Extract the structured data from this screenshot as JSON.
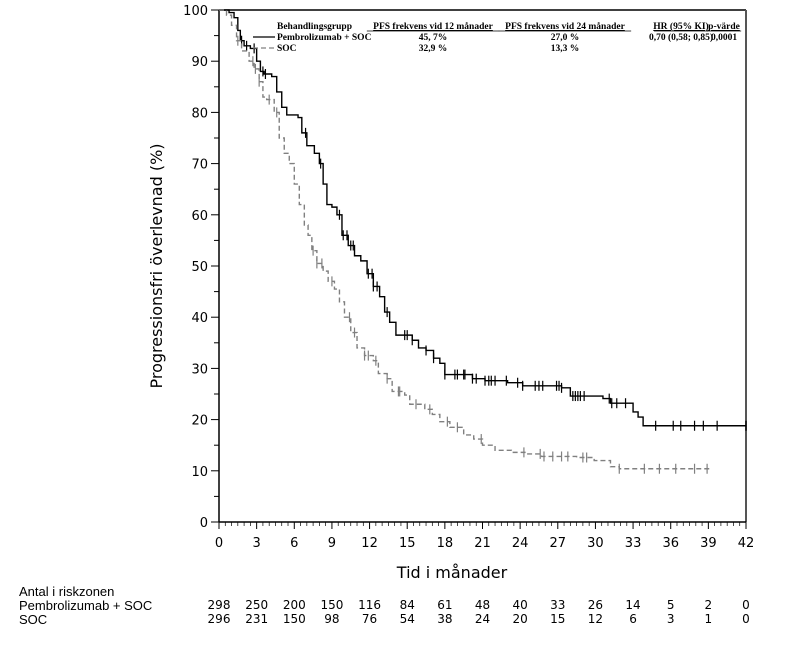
{
  "chart_data": {
    "type": "line",
    "subtype": "kaplan-meier",
    "title": "",
    "xlabel": "Tid i månader",
    "ylabel": "Progressionsfri överlevnad (%)",
    "xlim": [
      0,
      42
    ],
    "ylim": [
      0,
      100
    ],
    "x_ticks": [
      0,
      3,
      6,
      9,
      12,
      15,
      18,
      21,
      24,
      27,
      30,
      33,
      36,
      39,
      42
    ],
    "y_ticks": [
      0,
      10,
      20,
      30,
      40,
      50,
      60,
      70,
      80,
      90,
      100
    ],
    "grid": false,
    "legend": {
      "placement": "top-right",
      "headers": [
        "Behandlingsgrupp",
        "PFS frekvens vid 12 månader",
        "PFS frekvens vid 24 månader",
        "HR (95% KI)",
        "p-värde"
      ],
      "rows": [
        {
          "group": "Pembrolizumab + SOC",
          "pfs12": "45, 7%",
          "pfs24": "27,0 %",
          "hr": "0,70 (0,58; 0,85)",
          "p": "0,0001"
        },
        {
          "group": "SOC",
          "pfs12": "32,9 %",
          "pfs24": "13,3 %",
          "hr": "",
          "p": ""
        }
      ]
    },
    "series": [
      {
        "name": "Pembrolizumab + SOC",
        "style": "solid",
        "color": "#000000",
        "steps": [
          [
            0,
            100
          ],
          [
            0.8,
            99.5
          ],
          [
            1.2,
            98.5
          ],
          [
            1.5,
            96
          ],
          [
            1.7,
            94
          ],
          [
            2.0,
            93
          ],
          [
            2.5,
            92.5
          ],
          [
            3.0,
            90
          ],
          [
            3.3,
            88
          ],
          [
            3.6,
            87.5
          ],
          [
            4.2,
            87
          ],
          [
            4.6,
            84
          ],
          [
            5.0,
            81
          ],
          [
            5.4,
            79.5
          ],
          [
            6.3,
            79
          ],
          [
            6.6,
            76
          ],
          [
            7.0,
            73.5
          ],
          [
            7.6,
            72
          ],
          [
            8.0,
            70
          ],
          [
            8.3,
            66
          ],
          [
            8.6,
            62
          ],
          [
            9.0,
            61.5
          ],
          [
            9.4,
            60
          ],
          [
            9.8,
            56
          ],
          [
            10.3,
            54
          ],
          [
            10.8,
            52
          ],
          [
            11.3,
            51
          ],
          [
            11.8,
            48.5
          ],
          [
            12.3,
            46
          ],
          [
            12.8,
            44
          ],
          [
            13.2,
            41
          ],
          [
            13.6,
            39
          ],
          [
            14.1,
            36.5
          ],
          [
            15.4,
            35.5
          ],
          [
            15.9,
            34
          ],
          [
            16.5,
            33.5
          ],
          [
            17.1,
            32
          ],
          [
            17.6,
            31
          ],
          [
            18.0,
            28.8
          ],
          [
            20.2,
            28
          ],
          [
            21.2,
            27.6
          ],
          [
            23.0,
            27.2
          ],
          [
            24.2,
            26.6
          ],
          [
            27.3,
            26.2
          ],
          [
            28.0,
            24.6
          ],
          [
            30.6,
            24.1
          ],
          [
            31.2,
            23.2
          ],
          [
            33.0,
            21.5
          ],
          [
            33.4,
            20.5
          ],
          [
            33.8,
            18.8
          ],
          [
            42,
            18.8
          ]
        ],
        "censor": [
          1.8,
          2.2,
          2.8,
          3.5,
          3.7,
          6.9,
          8.1,
          9.6,
          9.9,
          10.2,
          10.5,
          10.7,
          11.9,
          12.2,
          12.3,
          12.6,
          13.4,
          14.8,
          15.0,
          15.4,
          16.5,
          17.1,
          18.0,
          18.8,
          19.0,
          19.5,
          19.6,
          20.2,
          20.5,
          21.2,
          21.5,
          21.7,
          22.0,
          22.9,
          23.8,
          24.2,
          25.2,
          25.5,
          25.8,
          26.9,
          27.1,
          27.3,
          28.2,
          28.4,
          28.6,
          28.8,
          29.1,
          31.1,
          31.3,
          31.7,
          32.4,
          34.8,
          36.2,
          36.8,
          37.9,
          38.6,
          39.7,
          42.0
        ]
      },
      {
        "name": "SOC",
        "style": "dashed",
        "color": "#808080",
        "steps": [
          [
            0,
            100
          ],
          [
            0.6,
            99
          ],
          [
            1.0,
            97
          ],
          [
            1.4,
            94
          ],
          [
            1.8,
            92
          ],
          [
            2.4,
            90
          ],
          [
            2.8,
            88.5
          ],
          [
            3.2,
            86
          ],
          [
            3.5,
            83
          ],
          [
            3.8,
            82.5
          ],
          [
            4.4,
            80
          ],
          [
            4.8,
            75
          ],
          [
            5.2,
            72
          ],
          [
            5.6,
            70
          ],
          [
            6.0,
            66
          ],
          [
            6.4,
            62
          ],
          [
            6.8,
            58
          ],
          [
            7.1,
            56
          ],
          [
            7.4,
            53
          ],
          [
            7.8,
            50.5
          ],
          [
            8.3,
            49
          ],
          [
            8.7,
            47
          ],
          [
            9.2,
            45.5
          ],
          [
            9.6,
            43
          ],
          [
            10.0,
            40
          ],
          [
            10.5,
            37
          ],
          [
            11.0,
            34
          ],
          [
            11.6,
            32.5
          ],
          [
            12.3,
            31.5
          ],
          [
            12.7,
            29
          ],
          [
            13.4,
            28
          ],
          [
            13.8,
            25.5
          ],
          [
            14.8,
            24.8
          ],
          [
            15.2,
            23
          ],
          [
            16.4,
            22
          ],
          [
            17.0,
            21
          ],
          [
            17.6,
            19.6
          ],
          [
            18.4,
            18.5
          ],
          [
            19.5,
            17
          ],
          [
            20.3,
            16.2
          ],
          [
            21.0,
            15
          ],
          [
            22.0,
            14
          ],
          [
            23.3,
            13.6
          ],
          [
            24.5,
            13.3
          ],
          [
            25.7,
            12.8
          ],
          [
            28.5,
            12.6
          ],
          [
            29.9,
            12.0
          ],
          [
            31.2,
            10.8
          ],
          [
            31.9,
            10.4
          ],
          [
            39.3,
            10.4
          ]
        ],
        "censor": [
          1.5,
          2.7,
          2.9,
          3.2,
          4.0,
          4.6,
          7.5,
          7.8,
          8.2,
          9.0,
          10.4,
          10.8,
          11.6,
          11.9,
          12.5,
          13.4,
          14.3,
          14.4,
          15.7,
          16.8,
          18.2,
          19.0,
          20.9,
          24.3,
          25.6,
          25.9,
          26.6,
          27.3,
          27.8,
          29.0,
          29.3,
          31.9,
          33.9,
          35.1,
          36.4,
          37.9,
          38.9
        ]
      }
    ],
    "at_risk": {
      "title": "Antal i riskzonen",
      "times": [
        0,
        3,
        6,
        9,
        12,
        15,
        18,
        21,
        24,
        27,
        30,
        33,
        36,
        39,
        42
      ],
      "rows": [
        {
          "group": "Pembrolizumab + SOC",
          "counts": [
            298,
            250,
            200,
            150,
            116,
            84,
            61,
            48,
            40,
            33,
            26,
            14,
            5,
            2,
            0
          ]
        },
        {
          "group": "SOC",
          "counts": [
            296,
            231,
            150,
            98,
            76,
            54,
            38,
            24,
            20,
            15,
            12,
            6,
            3,
            1,
            0
          ]
        }
      ]
    }
  }
}
